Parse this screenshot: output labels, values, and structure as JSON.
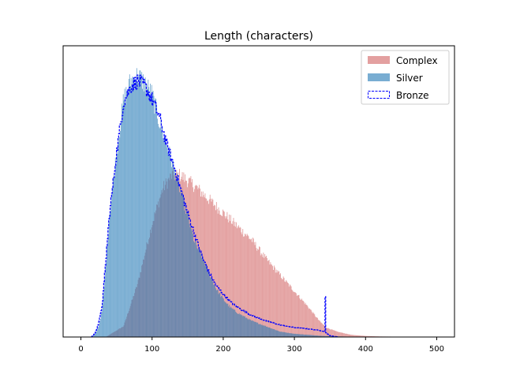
{
  "chart_data": {
    "type": "histogram",
    "title": "Length (characters)",
    "xlabel": "",
    "ylabel": "",
    "xlim": [
      -25,
      525
    ],
    "ylim": [
      0,
      1.08
    ],
    "xticks": [
      0,
      100,
      200,
      300,
      400,
      500
    ],
    "yticks_shown": false,
    "legend": {
      "placement": "top-right"
    },
    "bin_width": 1,
    "series": [
      {
        "name": "Complex",
        "style": "filled",
        "color": "#d98080",
        "alpha": 0.75,
        "curve": [
          [
            35,
            0
          ],
          [
            60,
            0.04
          ],
          [
            80,
            0.2
          ],
          [
            100,
            0.42
          ],
          [
            115,
            0.55
          ],
          [
            128,
            0.6
          ],
          [
            140,
            0.6
          ],
          [
            160,
            0.56
          ],
          [
            180,
            0.51
          ],
          [
            200,
            0.46
          ],
          [
            220,
            0.41
          ],
          [
            240,
            0.36
          ],
          [
            260,
            0.29
          ],
          [
            280,
            0.23
          ],
          [
            300,
            0.17
          ],
          [
            320,
            0.11
          ],
          [
            335,
            0.06
          ],
          [
            345,
            0.035
          ],
          [
            360,
            0.02
          ],
          [
            380,
            0.008
          ],
          [
            400,
            0.004
          ],
          [
            420,
            0.002
          ],
          [
            450,
            0.001
          ],
          [
            500,
            0.0003
          ]
        ],
        "spikes": []
      },
      {
        "name": "Silver",
        "style": "filled",
        "color": "#1f77b4",
        "alpha": 0.6,
        "curve": [
          [
            15,
            0
          ],
          [
            20,
            0.01
          ],
          [
            25,
            0.04
          ],
          [
            30,
            0.1
          ],
          [
            35,
            0.27
          ],
          [
            40,
            0.45
          ],
          [
            50,
            0.68
          ],
          [
            60,
            0.88
          ],
          [
            70,
            0.95
          ],
          [
            80,
            0.97
          ],
          [
            90,
            0.94
          ],
          [
            100,
            0.9
          ],
          [
            110,
            0.8
          ],
          [
            120,
            0.72
          ],
          [
            130,
            0.63
          ],
          [
            140,
            0.54
          ],
          [
            150,
            0.45
          ],
          [
            160,
            0.35
          ],
          [
            170,
            0.3
          ],
          [
            180,
            0.24
          ],
          [
            190,
            0.18
          ],
          [
            200,
            0.14
          ],
          [
            210,
            0.11
          ],
          [
            220,
            0.09
          ],
          [
            240,
            0.06
          ],
          [
            260,
            0.04
          ],
          [
            280,
            0.02
          ],
          [
            300,
            0.012
          ],
          [
            340,
            0.004
          ],
          [
            380,
            0.001
          ]
        ],
        "spikes": []
      },
      {
        "name": "Bronze",
        "style": "step",
        "color": "#0000ff",
        "dashed": true,
        "curve": [
          [
            15,
            0
          ],
          [
            20,
            0.015
          ],
          [
            25,
            0.05
          ],
          [
            30,
            0.12
          ],
          [
            35,
            0.28
          ],
          [
            40,
            0.45
          ],
          [
            50,
            0.68
          ],
          [
            60,
            0.87
          ],
          [
            70,
            0.93
          ],
          [
            80,
            0.95
          ],
          [
            90,
            0.93
          ],
          [
            100,
            0.88
          ],
          [
            110,
            0.82
          ],
          [
            120,
            0.72
          ],
          [
            130,
            0.64
          ],
          [
            140,
            0.55
          ],
          [
            150,
            0.46
          ],
          [
            160,
            0.38
          ],
          [
            170,
            0.3
          ],
          [
            180,
            0.24
          ],
          [
            190,
            0.19
          ],
          [
            200,
            0.16
          ],
          [
            210,
            0.13
          ],
          [
            220,
            0.11
          ],
          [
            240,
            0.08
          ],
          [
            260,
            0.06
          ],
          [
            280,
            0.045
          ],
          [
            300,
            0.035
          ],
          [
            320,
            0.03
          ],
          [
            335,
            0.025
          ],
          [
            342,
            0.02
          ],
          [
            350,
            0.005
          ],
          [
            360,
            0.001
          ]
        ],
        "spikes": [
          {
            "x": 343,
            "y": 0.15
          }
        ]
      }
    ]
  }
}
